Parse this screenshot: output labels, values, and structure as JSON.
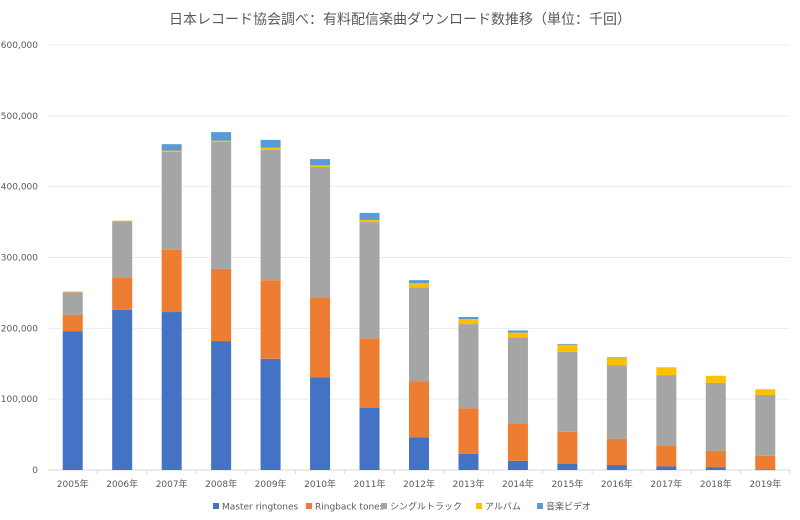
{
  "chart_data": {
    "type": "bar",
    "stacked": true,
    "title": "日本レコード協会調べ：有料配信楽曲ダウンロード数推移（単位：千回）",
    "xlabel": "",
    "ylabel": "",
    "ylim": [
      0,
      600000
    ],
    "yticks": [
      0,
      100000,
      200000,
      300000,
      400000,
      500000,
      600000
    ],
    "ytick_labels": [
      "0",
      "100,000",
      "200,000",
      "300,000",
      "400,000",
      "500,000",
      "600,000"
    ],
    "grid": true,
    "legend_position": "bottom",
    "categories": [
      "2005年",
      "2006年",
      "2007年",
      "2008年",
      "2009年",
      "2010年",
      "2011年",
      "2012年",
      "2013年",
      "2014年",
      "2015年",
      "2016年",
      "2017年",
      "2018年",
      "2019年"
    ],
    "series": [
      {
        "name": "Master ringtones",
        "color": "#4472c4",
        "values": [
          196000,
          226000,
          223000,
          182000,
          157000,
          131000,
          88000,
          46000,
          23000,
          13000,
          9000,
          7000,
          5000,
          4000,
          1000
        ]
      },
      {
        "name": "Ringback tones",
        "color": "#ed7d31",
        "values": [
          23000,
          46000,
          88000,
          102000,
          111000,
          113000,
          98000,
          79000,
          64000,
          53000,
          45000,
          37000,
          30000,
          23000,
          19000
        ]
      },
      {
        "name": "シングルトラック",
        "color": "#a5a5a5",
        "values": [
          32000,
          79000,
          138000,
          179000,
          184000,
          184000,
          164000,
          133000,
          119000,
          121000,
          113000,
          104000,
          99000,
          96000,
          86000
        ]
      },
      {
        "name": "アルバム",
        "color": "#ffc000",
        "values": [
          1000,
          1000,
          2000,
          2000,
          3000,
          2000,
          3000,
          6000,
          7000,
          7000,
          10000,
          10000,
          11000,
          10000,
          8000
        ]
      },
      {
        "name": "音楽ビデオ",
        "color": "#5b9bd5",
        "values": [
          0,
          0,
          9000,
          12000,
          11000,
          9000,
          10000,
          4000,
          3000,
          3000,
          1000,
          1000,
          0,
          0,
          0
        ]
      }
    ]
  }
}
